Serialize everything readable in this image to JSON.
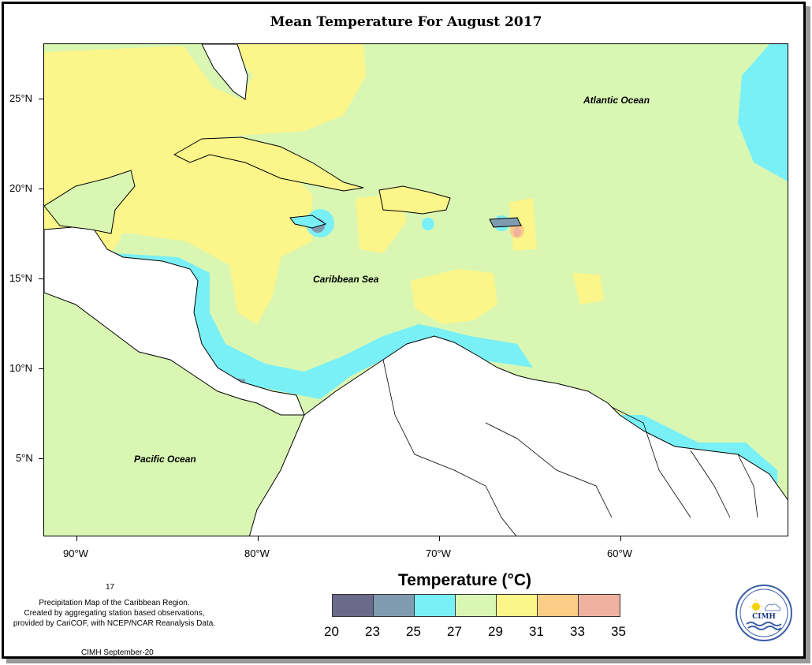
{
  "title": "Mean Temperature For August 2017",
  "axes": {
    "y_ticks": [
      "25°N",
      "20°N",
      "15°N",
      "10°N",
      "5°N"
    ],
    "x_ticks": [
      "90°W",
      "80°W",
      "70°W",
      "60°W"
    ]
  },
  "region_labels": {
    "atlantic": "Atlantic Ocean",
    "caribbean": "Caribbean Sea",
    "pacific": "Pacific Ocean"
  },
  "legend": {
    "title": "Temperature (°C)",
    "bins": [
      {
        "color": "#6b6a8a"
      },
      {
        "color": "#7f9bb0"
      },
      {
        "color": "#79f0f5"
      },
      {
        "color": "#d9f7b3"
      },
      {
        "color": "#fbf58a"
      },
      {
        "color": "#fbcd86"
      },
      {
        "color": "#f0b2a0"
      }
    ],
    "labels": [
      "20",
      "23",
      "25",
      "27",
      "29",
      "31",
      "33",
      "35"
    ]
  },
  "notes": {
    "number": "17",
    "line1": "Precipitation Map of the Caribbean Region.",
    "line2": "Created by aggregating station based observations,",
    "line3": "provided by CariCOF, with NCEP/NCAR Reanalysis Data.",
    "credit": "CIMH September-20"
  },
  "logo": {
    "text": "CIMH"
  }
}
